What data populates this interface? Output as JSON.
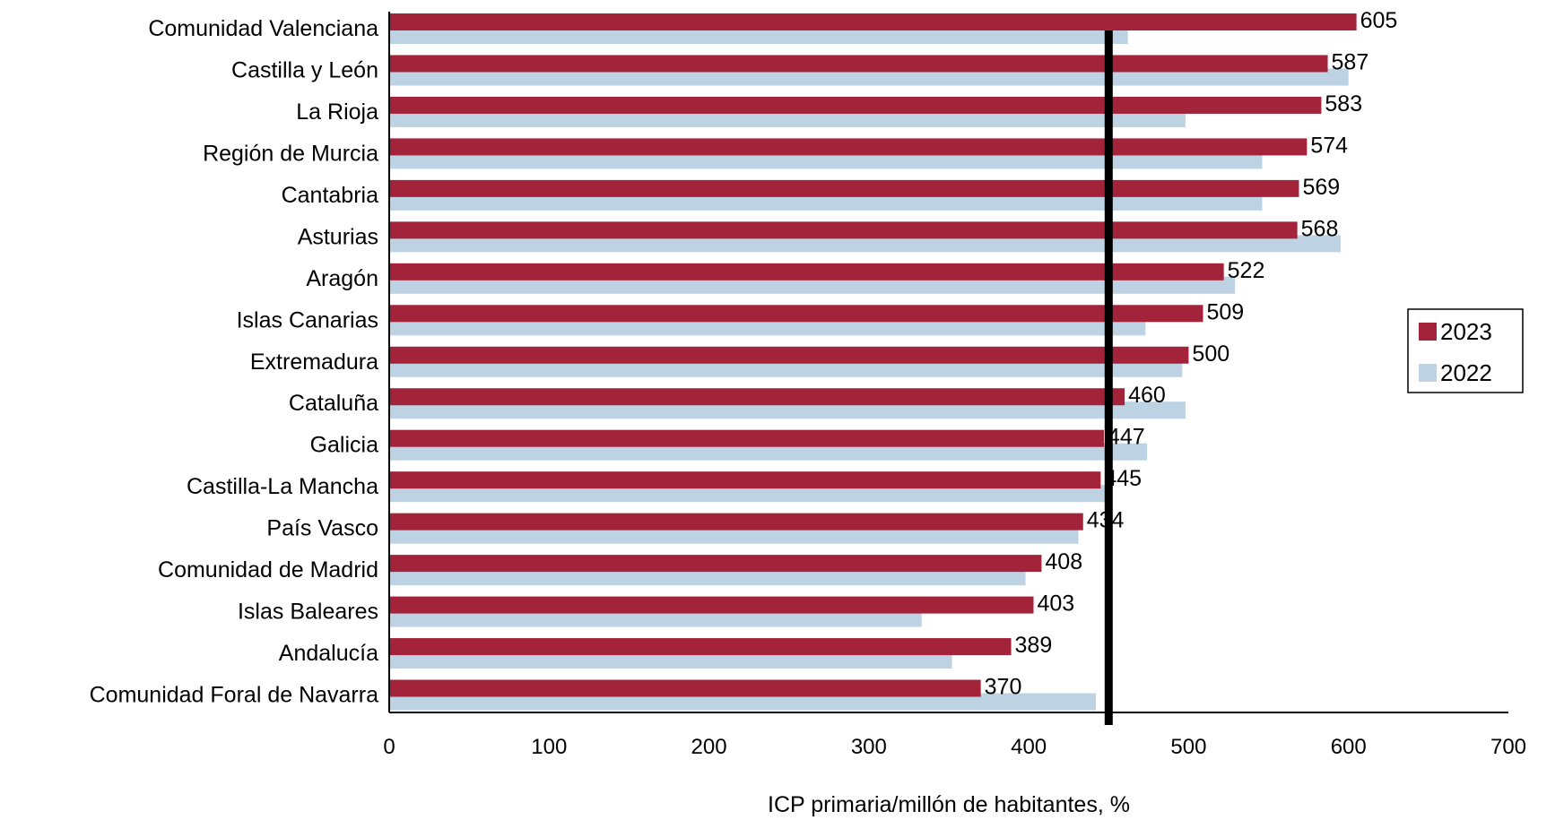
{
  "chart_data": {
    "type": "bar",
    "orientation": "horizontal",
    "title": "",
    "xlabel": "ICP primaria/millón de habitantes, %",
    "ylabel": "",
    "xlim": [
      0,
      700
    ],
    "xticks": [
      0,
      100,
      200,
      300,
      400,
      500,
      600,
      700
    ],
    "xtick_labels": [
      "0",
      "100",
      "200",
      "300",
      "400",
      "500",
      "600",
      "700"
    ],
    "grid": false,
    "legend_position": "right",
    "reference_line": {
      "value": 450,
      "color": "#000000"
    },
    "categories": [
      "Comunidad Valenciana",
      "Castilla y León",
      "La Rioja",
      "Región de Murcia",
      "Cantabria",
      "Asturias",
      "Aragón",
      "Islas Canarias",
      "Extremadura",
      "Cataluña",
      "Galicia",
      "Castilla-La Mancha",
      "País Vasco",
      "Comunidad de Madrid",
      "Islas Baleares",
      "Andalucía",
      "Comunidad Foral de Navarra"
    ],
    "series": [
      {
        "name": "2023",
        "color": "#a3243a",
        "values": [
          605,
          587,
          583,
          574,
          569,
          568,
          522,
          509,
          500,
          460,
          447,
          445,
          434,
          408,
          403,
          389,
          370
        ],
        "value_labels": [
          "605",
          "587",
          "583",
          "574",
          "569",
          "568",
          "522",
          "509",
          "500",
          "460",
          "447",
          "445",
          "434",
          "408",
          "403",
          "389",
          "370"
        ]
      },
      {
        "name": "2022",
        "color": "#bdd2e2",
        "values": [
          462,
          600,
          498,
          546,
          546,
          595,
          529,
          473,
          496,
          498,
          474,
          448,
          431,
          398,
          333,
          352,
          442
        ]
      }
    ]
  }
}
